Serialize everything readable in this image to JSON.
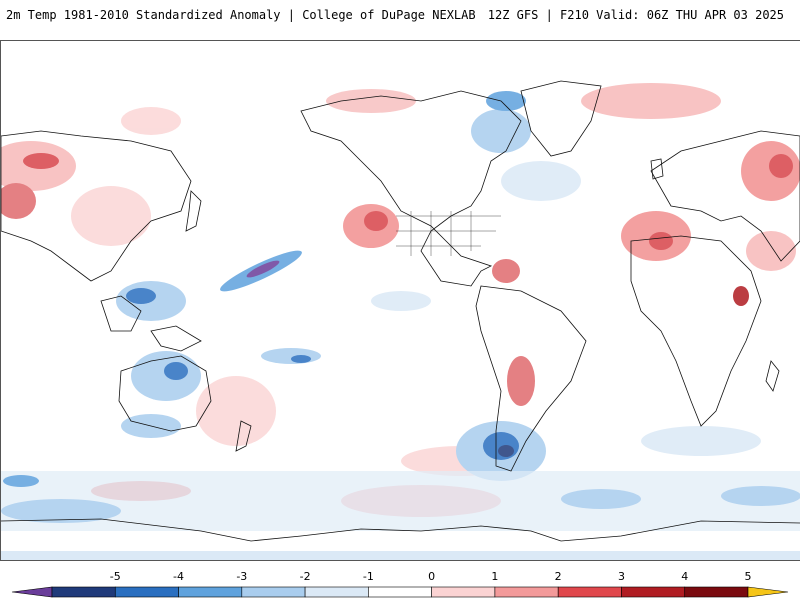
{
  "title": {
    "left": "2m Temp 1981-2010 Standardized Anomaly | College of DuPage NEXLAB",
    "right": "12Z GFS | F210 Valid: 06Z THU APR 03 2025"
  },
  "colorbar": {
    "labels": [
      "-5",
      "-4",
      "-3",
      "-2",
      "-1",
      "0",
      "1",
      "2",
      "3",
      "4",
      "5"
    ],
    "colors": [
      "#6a3d9a",
      "#1f3a7a",
      "#2a6fc0",
      "#5fa2dd",
      "#a9cdee",
      "#dbe9f6",
      "#ffffff",
      "#fbd3d3",
      "#f39a9a",
      "#e0474c",
      "#b01c22",
      "#7a0a0f",
      "#f5c518"
    ]
  },
  "legend_colors": {
    "cold_extreme": "#6a3d9a",
    "cold_strong": "#2a6fc0",
    "cold_mild": "#a9cdee",
    "warm_mild": "#fbd3d3",
    "warm_strong": "#e0474c",
    "warm_extreme": "#7a0a0f"
  }
}
